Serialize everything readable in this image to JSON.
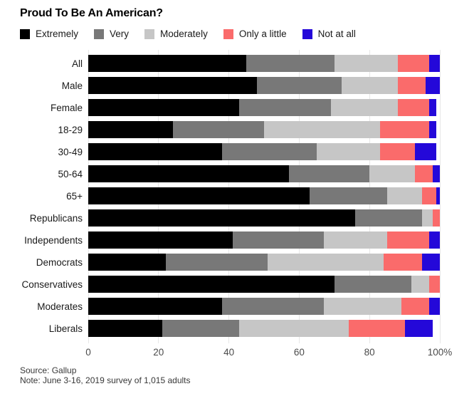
{
  "title": "Proud To Be An American?",
  "footer": {
    "source": "Source: Gallup",
    "note": "Note: June 3-16, 2019 survey of 1,015 adults"
  },
  "colors": {
    "extremely": "#000000",
    "very": "#787878",
    "moderately": "#c6c6c6",
    "only_a_little": "#fa6b6b",
    "not_at_all": "#2408d9",
    "gridline": "#e7e7e7"
  },
  "chart_data": {
    "type": "bar",
    "stacked": true,
    "orientation": "horizontal",
    "title": "Proud To Be An American?",
    "categories": [
      "All",
      "Male",
      "Female",
      "18-29",
      "30-49",
      "50-64",
      "65+",
      "Republicans",
      "Independents",
      "Democrats",
      "Conservatives",
      "Moderates",
      "Liberals"
    ],
    "series": [
      {
        "name": "Extremely",
        "color": "#000000",
        "values": [
          45,
          48,
          43,
          24,
          38,
          57,
          63,
          76,
          41,
          22,
          70,
          38,
          21
        ]
      },
      {
        "name": "Very",
        "color": "#787878",
        "values": [
          25,
          24,
          26,
          26,
          27,
          23,
          22,
          19,
          26,
          29,
          22,
          29,
          22
        ]
      },
      {
        "name": "Moderately",
        "color": "#c6c6c6",
        "values": [
          18,
          16,
          19,
          33,
          18,
          13,
          10,
          3,
          18,
          33,
          5,
          22,
          31
        ]
      },
      {
        "name": "Only a little",
        "color": "#fa6b6b",
        "values": [
          9,
          8,
          9,
          14,
          10,
          5,
          4,
          2,
          12,
          11,
          3,
          8,
          16
        ]
      },
      {
        "name": "Not at all",
        "color": "#2408d9",
        "values": [
          3,
          4,
          2,
          2,
          6,
          2,
          1,
          0,
          3,
          5,
          0,
          3,
          8
        ]
      }
    ],
    "xlabel": "",
    "ylabel": "",
    "xlim": [
      0,
      100
    ],
    "x_tick_values": [
      0,
      20,
      40,
      60,
      80,
      100
    ],
    "x_tick_labels": [
      "0",
      "20",
      "40",
      "60",
      "80",
      "100%"
    ],
    "legend_position": "top",
    "grid": "vertical"
  }
}
